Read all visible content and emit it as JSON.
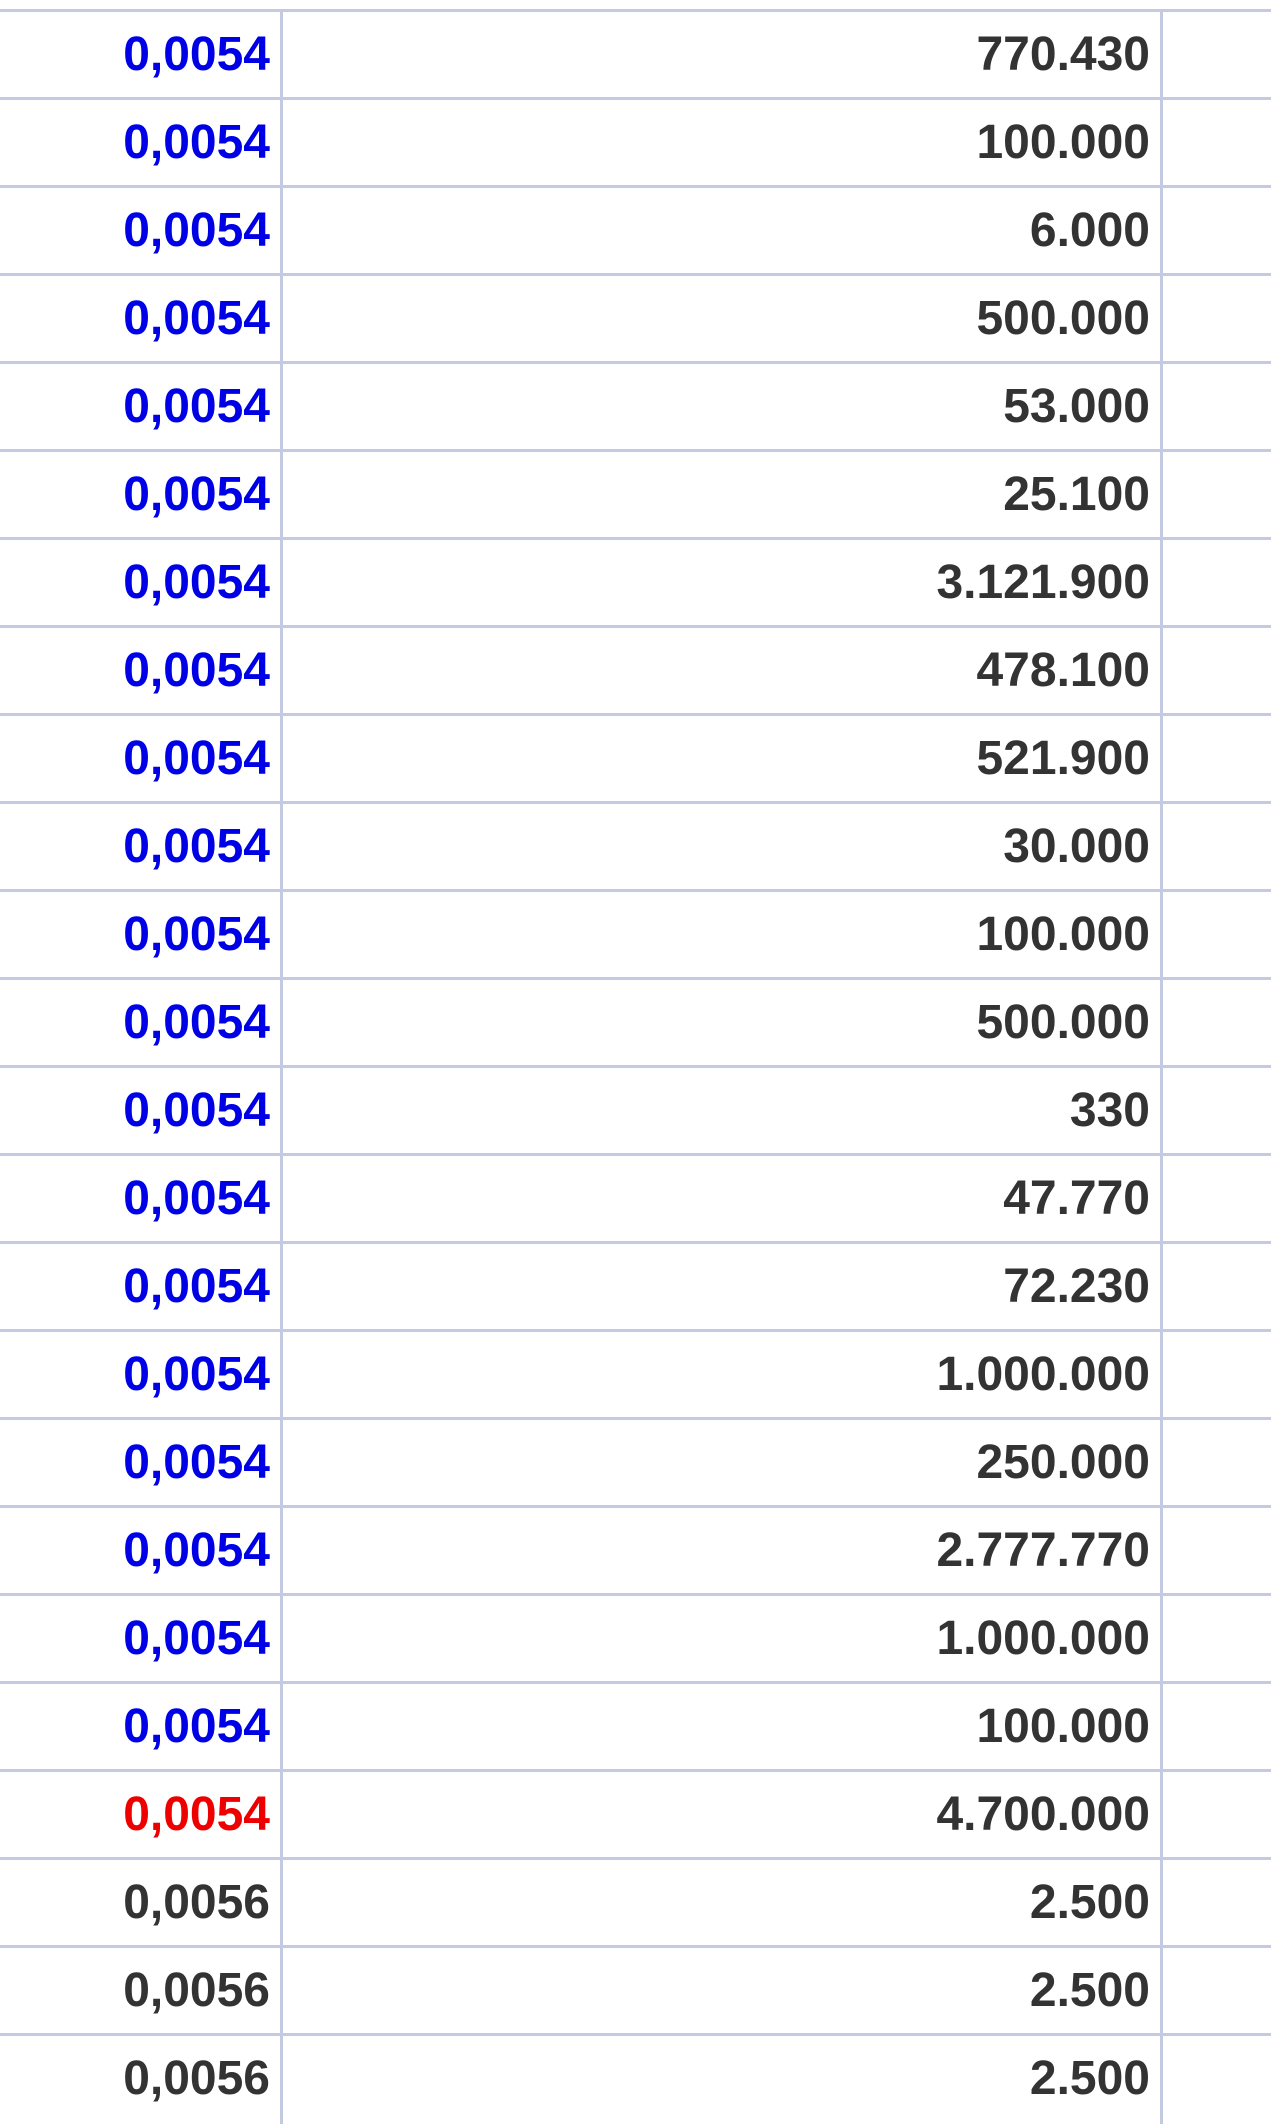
{
  "colors": {
    "highlight_blue": "#0000e6",
    "highlight_red": "#ee0000",
    "default": "#333333",
    "grid": "#c3cae2"
  },
  "rows": [
    {
      "price": "0,0054",
      "volume": "770.430",
      "style": "blue"
    },
    {
      "price": "0,0054",
      "volume": "100.000",
      "style": "blue"
    },
    {
      "price": "0,0054",
      "volume": "6.000",
      "style": "blue"
    },
    {
      "price": "0,0054",
      "volume": "500.000",
      "style": "blue"
    },
    {
      "price": "0,0054",
      "volume": "53.000",
      "style": "blue"
    },
    {
      "price": "0,0054",
      "volume": "25.100",
      "style": "blue"
    },
    {
      "price": "0,0054",
      "volume": "3.121.900",
      "style": "blue"
    },
    {
      "price": "0,0054",
      "volume": "478.100",
      "style": "blue"
    },
    {
      "price": "0,0054",
      "volume": "521.900",
      "style": "blue"
    },
    {
      "price": "0,0054",
      "volume": "30.000",
      "style": "blue"
    },
    {
      "price": "0,0054",
      "volume": "100.000",
      "style": "blue"
    },
    {
      "price": "0,0054",
      "volume": "500.000",
      "style": "blue"
    },
    {
      "price": "0,0054",
      "volume": "330",
      "style": "blue"
    },
    {
      "price": "0,0054",
      "volume": "47.770",
      "style": "blue"
    },
    {
      "price": "0,0054",
      "volume": "72.230",
      "style": "blue"
    },
    {
      "price": "0,0054",
      "volume": "1.000.000",
      "style": "blue"
    },
    {
      "price": "0,0054",
      "volume": "250.000",
      "style": "blue"
    },
    {
      "price": "0,0054",
      "volume": "2.777.770",
      "style": "blue"
    },
    {
      "price": "0,0054",
      "volume": "1.000.000",
      "style": "blue"
    },
    {
      "price": "0,0054",
      "volume": "100.000",
      "style": "blue"
    },
    {
      "price": "0,0054",
      "volume": "4.700.000",
      "style": "red"
    },
    {
      "price": "0,0056",
      "volume": "2.500",
      "style": "default"
    },
    {
      "price": "0,0056",
      "volume": "2.500",
      "style": "default"
    },
    {
      "price": "0,0056",
      "volume": "2.500",
      "style": "default"
    }
  ]
}
